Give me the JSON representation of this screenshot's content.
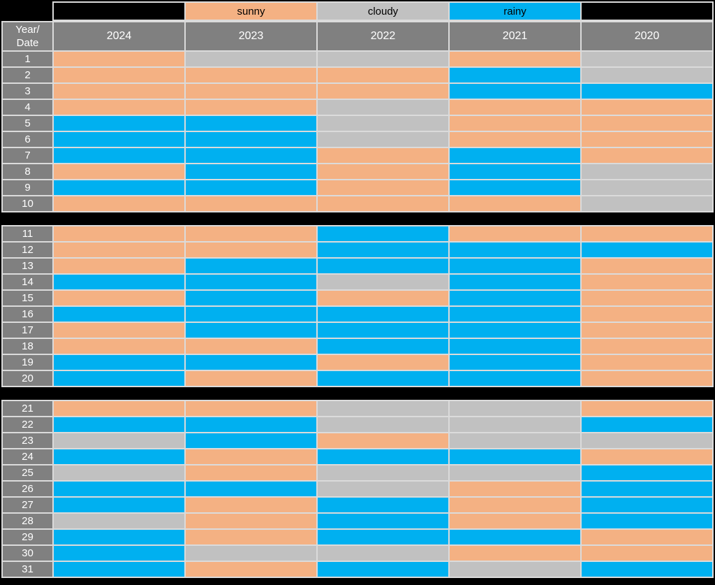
{
  "colors": {
    "sunny": "#F4B183",
    "cloudy": "#C1C1C1",
    "rainy": "#00B0F0",
    "header_bg": "#808080",
    "header_text": "#FFFFFF",
    "legend_text": "#000000",
    "cell_border": "#DBDBDB",
    "background": "#000000"
  },
  "header": {
    "corner_line1": "Year/",
    "corner_line2": "Date"
  },
  "chart_data": {
    "type": "heatmap",
    "title": "",
    "row_header": "Year/Date",
    "columns": [
      "2024",
      "2023",
      "2022",
      "2021",
      "2020"
    ],
    "row_range": [
      1,
      31
    ],
    "legend_position": "top",
    "legend": [
      {
        "label": "sunny",
        "color": "#F4B183"
      },
      {
        "label": "cloudy",
        "color": "#C1C1C1"
      },
      {
        "label": "rainy",
        "color": "#00B0F0"
      }
    ],
    "sections": [
      {
        "rows": [
          {
            "date": "1",
            "values": [
              "sunny",
              "cloudy",
              "cloudy",
              "sunny",
              "cloudy"
            ]
          },
          {
            "date": "2",
            "values": [
              "sunny",
              "sunny",
              "sunny",
              "rainy",
              "cloudy"
            ]
          },
          {
            "date": "3",
            "values": [
              "sunny",
              "sunny",
              "sunny",
              "rainy",
              "rainy"
            ]
          },
          {
            "date": "4",
            "values": [
              "sunny",
              "sunny",
              "cloudy",
              "sunny",
              "sunny"
            ]
          },
          {
            "date": "5",
            "values": [
              "rainy",
              "rainy",
              "cloudy",
              "sunny",
              "sunny"
            ]
          },
          {
            "date": "6",
            "values": [
              "rainy",
              "rainy",
              "cloudy",
              "sunny",
              "sunny"
            ]
          },
          {
            "date": "7",
            "values": [
              "rainy",
              "rainy",
              "sunny",
              "rainy",
              "sunny"
            ]
          },
          {
            "date": "8",
            "values": [
              "sunny",
              "rainy",
              "sunny",
              "rainy",
              "cloudy"
            ]
          },
          {
            "date": "9",
            "values": [
              "rainy",
              "rainy",
              "sunny",
              "rainy",
              "cloudy"
            ]
          },
          {
            "date": "10",
            "values": [
              "sunny",
              "sunny",
              "sunny",
              "sunny",
              "cloudy"
            ]
          }
        ]
      },
      {
        "rows": [
          {
            "date": "11",
            "values": [
              "sunny",
              "sunny",
              "rainy",
              "sunny",
              "sunny"
            ]
          },
          {
            "date": "12",
            "values": [
              "sunny",
              "sunny",
              "rainy",
              "rainy",
              "rainy"
            ]
          },
          {
            "date": "13",
            "values": [
              "sunny",
              "rainy",
              "rainy",
              "rainy",
              "sunny"
            ]
          },
          {
            "date": "14",
            "values": [
              "rainy",
              "rainy",
              "cloudy",
              "rainy",
              "sunny"
            ]
          },
          {
            "date": "15",
            "values": [
              "sunny",
              "rainy",
              "sunny",
              "rainy",
              "sunny"
            ]
          },
          {
            "date": "16",
            "values": [
              "rainy",
              "rainy",
              "rainy",
              "rainy",
              "sunny"
            ]
          },
          {
            "date": "17",
            "values": [
              "sunny",
              "rainy",
              "rainy",
              "rainy",
              "sunny"
            ]
          },
          {
            "date": "18",
            "values": [
              "sunny",
              "sunny",
              "rainy",
              "rainy",
              "sunny"
            ]
          },
          {
            "date": "19",
            "values": [
              "rainy",
              "rainy",
              "sunny",
              "rainy",
              "sunny"
            ]
          },
          {
            "date": "20",
            "values": [
              "rainy",
              "sunny",
              "rainy",
              "rainy",
              "sunny"
            ]
          }
        ]
      },
      {
        "rows": [
          {
            "date": "21",
            "values": [
              "sunny",
              "sunny",
              "cloudy",
              "cloudy",
              "sunny"
            ]
          },
          {
            "date": "22",
            "values": [
              "rainy",
              "rainy",
              "cloudy",
              "cloudy",
              "rainy"
            ]
          },
          {
            "date": "23",
            "values": [
              "cloudy",
              "rainy",
              "sunny",
              "cloudy",
              "cloudy"
            ]
          },
          {
            "date": "24",
            "values": [
              "rainy",
              "sunny",
              "rainy",
              "rainy",
              "sunny"
            ]
          },
          {
            "date": "25",
            "values": [
              "cloudy",
              "sunny",
              "cloudy",
              "cloudy",
              "rainy"
            ]
          },
          {
            "date": "26",
            "values": [
              "rainy",
              "rainy",
              "cloudy",
              "sunny",
              "rainy"
            ]
          },
          {
            "date": "27",
            "values": [
              "rainy",
              "sunny",
              "rainy",
              "sunny",
              "rainy"
            ]
          },
          {
            "date": "28",
            "values": [
              "cloudy",
              "sunny",
              "rainy",
              "sunny",
              "rainy"
            ]
          },
          {
            "date": "29",
            "values": [
              "rainy",
              "sunny",
              "rainy",
              "rainy",
              "sunny"
            ]
          },
          {
            "date": "30",
            "values": [
              "rainy",
              "cloudy",
              "cloudy",
              "sunny",
              "sunny"
            ]
          },
          {
            "date": "31",
            "values": [
              "rainy",
              "sunny",
              "rainy",
              "cloudy",
              "rainy"
            ]
          }
        ]
      }
    ]
  }
}
